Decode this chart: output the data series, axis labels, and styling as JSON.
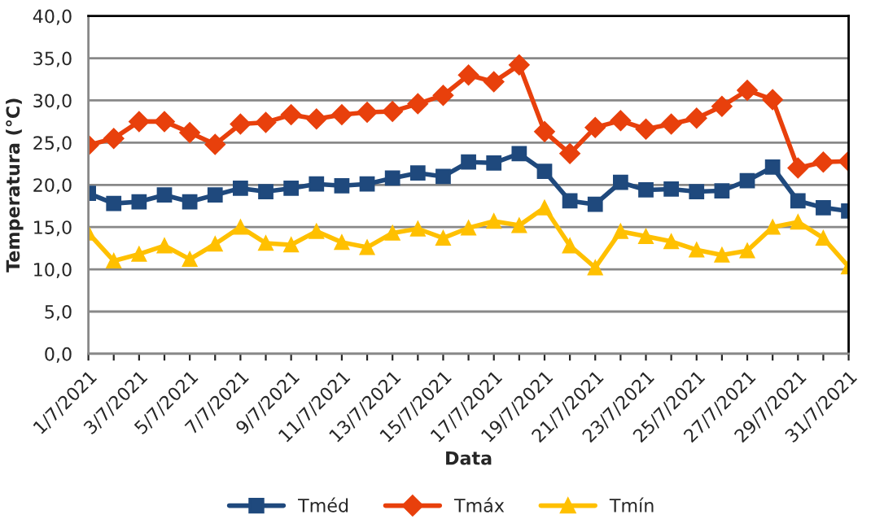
{
  "chart_data": {
    "type": "line",
    "xlabel": "Data",
    "ylabel": "Temperatura (°C)",
    "categories": [
      "1/7/2021",
      null,
      "3/7/2021",
      null,
      "5/7/2021",
      null,
      "7/7/2021",
      null,
      "9/7/2021",
      null,
      "11/7/2021",
      null,
      "13/7/2021",
      null,
      "15/7/2021",
      null,
      "17/7/2021",
      null,
      "19/7/2021",
      null,
      "21/7/2021",
      null,
      "23/7/2021",
      null,
      "25/7/2021",
      null,
      "27/7/2021",
      null,
      "29/7/2021",
      null,
      "31/7/2021"
    ],
    "series": [
      {
        "name": "Tméd",
        "color": "#1f497d",
        "marker": "square",
        "values": [
          19.0,
          17.8,
          18.0,
          18.8,
          18.0,
          18.8,
          19.6,
          19.2,
          19.6,
          20.1,
          19.9,
          20.1,
          20.8,
          21.4,
          21.0,
          22.7,
          22.6,
          23.7,
          21.6,
          18.1,
          17.7,
          20.3,
          19.4,
          19.5,
          19.2,
          19.3,
          20.5,
          22.1,
          18.1,
          17.3,
          16.9
        ]
      },
      {
        "name": "Tmáx",
        "color": "#e8400c",
        "marker": "diamond",
        "values": [
          24.7,
          25.5,
          27.5,
          27.5,
          26.2,
          24.8,
          27.2,
          27.4,
          28.3,
          27.8,
          28.3,
          28.6,
          28.7,
          29.6,
          30.6,
          33.0,
          32.2,
          34.2,
          26.3,
          23.7,
          26.8,
          27.6,
          26.6,
          27.2,
          27.9,
          29.3,
          31.2,
          30.1,
          22.0,
          22.7,
          22.8
        ]
      },
      {
        "name": "Tmín",
        "color": "#ffc000",
        "marker": "triangle",
        "values": [
          14.3,
          11.0,
          11.8,
          12.8,
          11.2,
          13.0,
          15.0,
          13.1,
          12.9,
          14.5,
          13.2,
          12.6,
          14.3,
          14.8,
          13.7,
          14.9,
          15.7,
          15.2,
          17.3,
          12.8,
          10.2,
          14.5,
          13.9,
          13.3,
          12.3,
          11.7,
          12.2,
          15.0,
          15.6,
          13.7,
          10.3
        ]
      }
    ],
    "ylim": [
      0,
      40
    ],
    "yticks": [
      {
        "value": 0,
        "label": "0,0"
      },
      {
        "value": 5,
        "label": "5,0"
      },
      {
        "value": 10,
        "label": "10,0"
      },
      {
        "value": 15,
        "label": "15,0"
      },
      {
        "value": 20,
        "label": "20,0"
      },
      {
        "value": 25,
        "label": "25,0"
      },
      {
        "value": 30,
        "label": "30,0"
      },
      {
        "value": 35,
        "label": "35,0"
      },
      {
        "value": 40,
        "label": "40,0"
      }
    ],
    "grid": "y",
    "legend": "bottom",
    "line_style": "solid"
  }
}
